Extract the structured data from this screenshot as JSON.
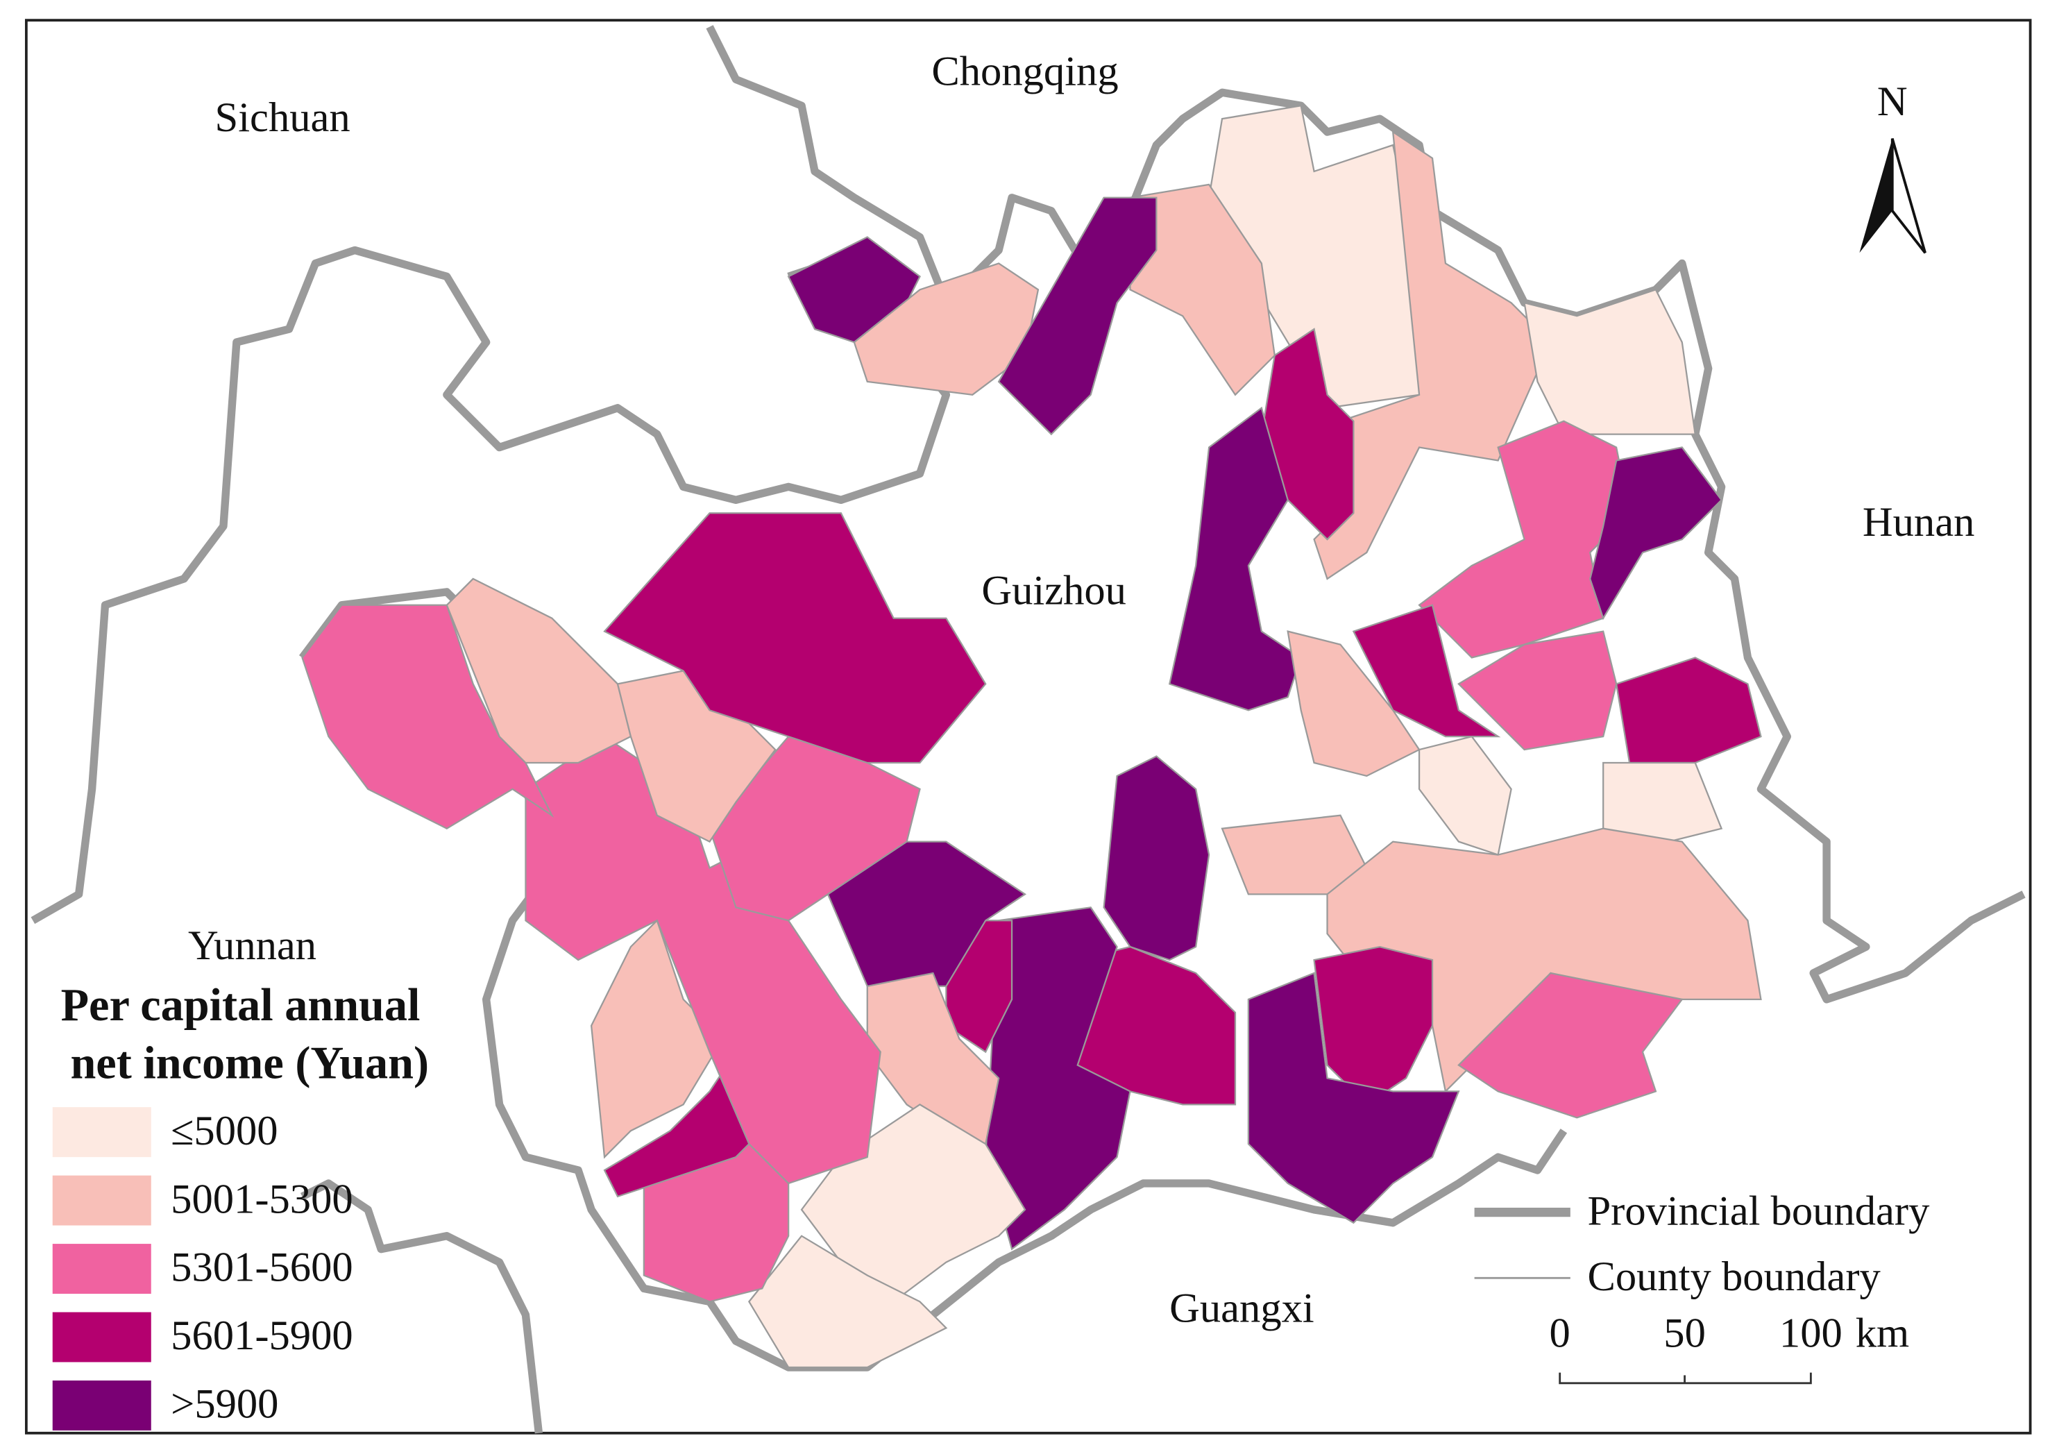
{
  "map": {
    "labels": [
      "Sichuan",
      "Chongqing",
      "Hunan",
      "Guizhou",
      "Yunnan",
      "Guangxi"
    ],
    "north": "N"
  },
  "legend": {
    "title": [
      "Per capital annual",
      "net income (Yuan)"
    ],
    "classes": [
      {
        "label": "≤5000",
        "color": "#fde9e1"
      },
      {
        "label": "5001-5300",
        "color": "#f8bfb8"
      },
      {
        "label": "5301-5600",
        "color": "#f062a0"
      },
      {
        "label": "5601-5900",
        "color": "#b4006f"
      },
      {
        "label": ">5900",
        "color": "#7a0074"
      }
    ]
  },
  "boundary_legend": [
    "Provincial boundary",
    "County boundary"
  ],
  "scale_bar": {
    "ticks": [
      0,
      50,
      100
    ],
    "unit": "km"
  }
}
